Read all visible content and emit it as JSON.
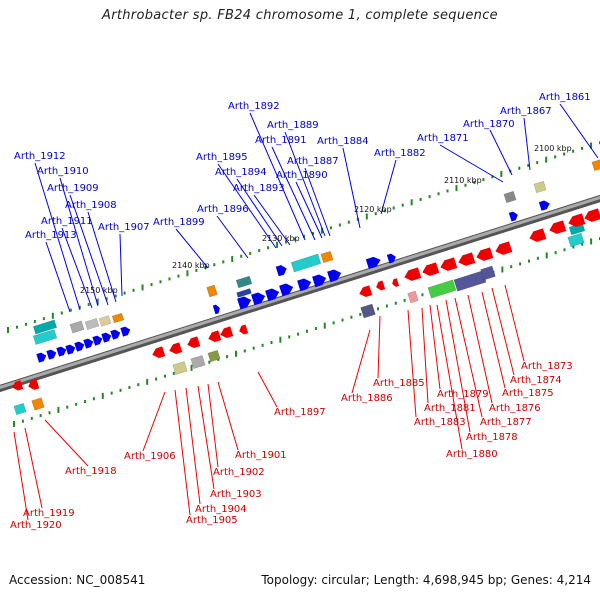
{
  "title": "Arthrobacter sp. FB24 chromosome 1, complete sequence",
  "footer": {
    "accession": "Accession: NC_008541",
    "stats": "Topology: circular; Length: 4,698,945 bp; Genes: 4,214"
  },
  "scale_labels": [
    "2100 kbp",
    "2110 kbp",
    "2120 kbp",
    "2130 kbp",
    "2140 kbp",
    "2150 kbp"
  ],
  "top_labels": [
    "Arth_1861",
    "Arth_1867",
    "Arth_1870",
    "Arth_1871",
    "Arth_1882",
    "Arth_1884",
    "Arth_1887",
    "Arth_1889",
    "Arth_1890",
    "Arth_1891",
    "Arth_1892",
    "Arth_1893",
    "Arth_1894",
    "Arth_1895",
    "Arth_1896",
    "Arth_1899",
    "Arth_1907",
    "Arth_1908",
    "Arth_1909",
    "Arth_1910",
    "Arth_1911",
    "Arth_1912",
    "Arth_1913"
  ],
  "bottom_labels": [
    "Arth_1873",
    "Arth_1874",
    "Arth_1875",
    "Arth_1876",
    "Arth_1877",
    "Arth_1878",
    "Arth_1879",
    "Arth_1880",
    "Arth_1881",
    "Arth_1883",
    "Arth_1885",
    "Arth_1886",
    "Arth_1897",
    "Arth_1901",
    "Arth_1902",
    "Arth_1903",
    "Arth_1904",
    "Arth_1905",
    "Arth_1906",
    "Arth_1918",
    "Arth_1919",
    "Arth_1920"
  ],
  "colors": {
    "top_strand": "#0000ee",
    "bottom_strand": "#ee0000",
    "backbone": "#808080",
    "tick": "#228822"
  }
}
